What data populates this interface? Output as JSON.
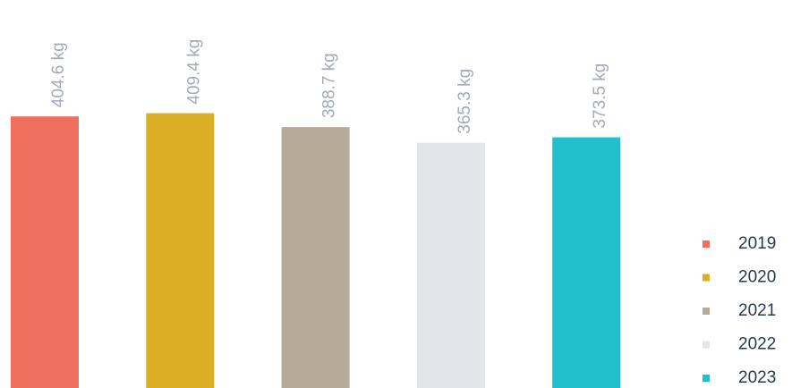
{
  "chart_data": {
    "type": "bar",
    "categories": [
      "2019",
      "2020",
      "2021",
      "2022",
      "2023"
    ],
    "values": [
      404.6,
      409.4,
      388.7,
      365.3,
      373.5
    ],
    "value_labels": [
      "404.6 kg",
      "409.4 kg",
      "388.7 kg",
      "365.3 kg",
      "373.5 kg"
    ],
    "colors": [
      "#f07060",
      "#dcae26",
      "#b8aa98",
      "#e2e6e8",
      "#22c0cb"
    ],
    "ylim": [
      0,
      578
    ]
  }
}
